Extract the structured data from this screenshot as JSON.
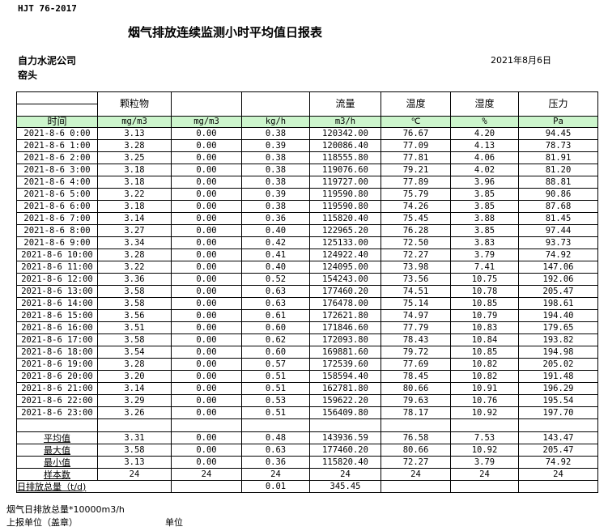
{
  "header": {
    "standard": "HJT  76-2017",
    "title": "烟气排放连续监测小时平均值日报表",
    "company": "自力水泥公司",
    "location": "窑头",
    "date": "2021年8月6日"
  },
  "columns": {
    "names": [
      "",
      "颗粒物",
      "",
      "",
      "流量",
      "温度",
      "湿度",
      "压力"
    ],
    "units": [
      "时间",
      "mg/m3",
      "mg/m3",
      "kg/h",
      "m3/h",
      "℃",
      "%",
      "Pa"
    ]
  },
  "rows": [
    [
      "2021-8-6 0:00",
      "3.13",
      "0.00",
      "0.38",
      "120342.00",
      "76.67",
      "4.20",
      "94.45"
    ],
    [
      "2021-8-6 1:00",
      "3.28",
      "0.00",
      "0.39",
      "120086.40",
      "77.09",
      "4.13",
      "78.73"
    ],
    [
      "2021-8-6 2:00",
      "3.25",
      "0.00",
      "0.38",
      "118555.80",
      "77.81",
      "4.06",
      "81.91"
    ],
    [
      "2021-8-6 3:00",
      "3.18",
      "0.00",
      "0.38",
      "119076.60",
      "79.21",
      "4.02",
      "81.20"
    ],
    [
      "2021-8-6 4:00",
      "3.18",
      "0.00",
      "0.38",
      "119727.00",
      "77.89",
      "3.96",
      "88.81"
    ],
    [
      "2021-8-6 5:00",
      "3.22",
      "0.00",
      "0.39",
      "119590.80",
      "75.79",
      "3.85",
      "90.86"
    ],
    [
      "2021-8-6 6:00",
      "3.18",
      "0.00",
      "0.38",
      "119590.80",
      "74.26",
      "3.85",
      "87.68"
    ],
    [
      "2021-8-6 7:00",
      "3.14",
      "0.00",
      "0.36",
      "115820.40",
      "75.45",
      "3.88",
      "81.45"
    ],
    [
      "2021-8-6 8:00",
      "3.27",
      "0.00",
      "0.40",
      "122965.20",
      "76.28",
      "3.85",
      "97.44"
    ],
    [
      "2021-8-6 9:00",
      "3.34",
      "0.00",
      "0.42",
      "125133.00",
      "72.50",
      "3.83",
      "93.73"
    ],
    [
      "2021-8-6 10:00",
      "3.28",
      "0.00",
      "0.41",
      "124922.40",
      "72.27",
      "3.79",
      "74.92"
    ],
    [
      "2021-8-6 11:00",
      "3.22",
      "0.00",
      "0.40",
      "124095.00",
      "73.98",
      "7.41",
      "147.06"
    ],
    [
      "2021-8-6 12:00",
      "3.36",
      "0.00",
      "0.52",
      "154243.00",
      "73.56",
      "10.75",
      "192.06"
    ],
    [
      "2021-8-6 13:00",
      "3.58",
      "0.00",
      "0.63",
      "177460.20",
      "74.51",
      "10.78",
      "205.47"
    ],
    [
      "2021-8-6 14:00",
      "3.58",
      "0.00",
      "0.63",
      "176478.00",
      "75.14",
      "10.85",
      "198.61"
    ],
    [
      "2021-8-6 15:00",
      "3.56",
      "0.00",
      "0.61",
      "172621.80",
      "74.97",
      "10.79",
      "194.40"
    ],
    [
      "2021-8-6 16:00",
      "3.51",
      "0.00",
      "0.60",
      "171846.60",
      "77.79",
      "10.83",
      "179.65"
    ],
    [
      "2021-8-6 17:00",
      "3.58",
      "0.00",
      "0.62",
      "172093.80",
      "78.43",
      "10.84",
      "193.82"
    ],
    [
      "2021-8-6 18:00",
      "3.54",
      "0.00",
      "0.60",
      "169881.60",
      "79.72",
      "10.85",
      "194.98"
    ],
    [
      "2021-8-6 19:00",
      "3.28",
      "0.00",
      "0.57",
      "172539.60",
      "77.69",
      "10.82",
      "205.02"
    ],
    [
      "2021-8-6 20:00",
      "3.20",
      "0.00",
      "0.51",
      "158594.40",
      "78.45",
      "10.82",
      "191.48"
    ],
    [
      "2021-8-6 21:00",
      "3.14",
      "0.00",
      "0.51",
      "162781.80",
      "80.66",
      "10.91",
      "196.29"
    ],
    [
      "2021-8-6 22:00",
      "3.29",
      "0.00",
      "0.53",
      "159622.20",
      "79.63",
      "10.76",
      "195.54"
    ],
    [
      "2021-8-6 23:00",
      "3.26",
      "0.00",
      "0.51",
      "156409.80",
      "78.17",
      "10.92",
      "197.70"
    ]
  ],
  "stats": [
    [
      "平均值",
      "3.31",
      "0.00",
      "0.48",
      "143936.59",
      "76.58",
      "7.53",
      "143.47"
    ],
    [
      "最大值",
      "3.58",
      "0.00",
      "0.63",
      "177460.20",
      "80.66",
      "10.92",
      "205.47"
    ],
    [
      "最小值",
      "3.13",
      "0.00",
      "0.36",
      "115820.40",
      "72.27",
      "3.79",
      "74.92"
    ],
    [
      "样本数",
      "24",
      "24",
      "24",
      "24",
      "24",
      "24",
      "24"
    ]
  ],
  "total": {
    "label": "日排放总量（t/d)",
    "col2": "",
    "col3": "0.01",
    "flow": "345.45"
  },
  "footer": {
    "note": "烟气日排放总量*10000m3/h",
    "reporter": "上报单位（盖章）",
    "unit": "单位"
  },
  "colors": {
    "unit_row_bg": "#ccf5cc"
  }
}
